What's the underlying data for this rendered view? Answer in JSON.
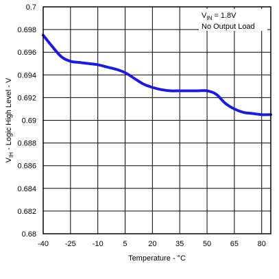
{
  "chart_data": {
    "type": "line",
    "title": "",
    "xlabel": "Temperature - °C",
    "ylabel": "VIH - Logic High Level - V",
    "ylabel_main": "V",
    "ylabel_sub": "IH",
    "ylabel_rest": " - Logic High Level - V",
    "xlim": [
      -40,
      85
    ],
    "ylim": [
      0.68,
      0.7
    ],
    "xticks": [
      -40,
      -25,
      -10,
      5,
      20,
      35,
      50,
      65,
      80
    ],
    "yticks": [
      0.68,
      0.682,
      0.684,
      0.686,
      0.688,
      0.69,
      0.692,
      0.694,
      0.696,
      0.698,
      0.7
    ],
    "grid": true,
    "annotation": {
      "line1_main": "V",
      "line1_sub": "IN",
      "line1_rest": " = 1.8V",
      "line2": "No Output Load",
      "placement": "top-right"
    },
    "series": [
      {
        "color": "#1a1ae6",
        "x": [
          -40,
          -35,
          -30,
          -25,
          -20,
          -15,
          -10,
          -5,
          0,
          5,
          10,
          15,
          20,
          25,
          30,
          35,
          40,
          45,
          50,
          55,
          60,
          65,
          70,
          75,
          80,
          85
        ],
        "y": [
          0.6975,
          0.6965,
          0.6956,
          0.6952,
          0.6951,
          0.695,
          0.6949,
          0.6947,
          0.6945,
          0.6942,
          0.6937,
          0.6932,
          0.6929,
          0.6927,
          0.6926,
          0.6926,
          0.6926,
          0.6926,
          0.6926,
          0.6923,
          0.6915,
          0.691,
          0.6907,
          0.6906,
          0.6905,
          0.6905
        ]
      }
    ]
  }
}
